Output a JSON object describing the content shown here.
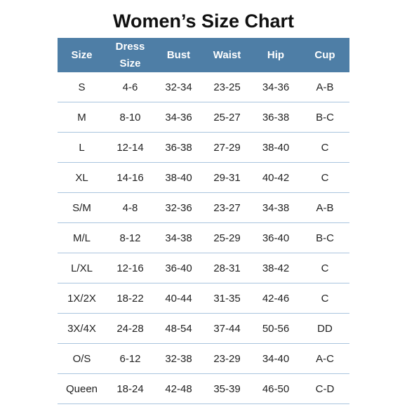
{
  "title": "Women’s Size Chart",
  "columns": [
    {
      "key": "size",
      "lines": [
        "Size"
      ]
    },
    {
      "key": "dress_size",
      "lines": [
        "Dress",
        "Size"
      ]
    },
    {
      "key": "bust",
      "lines": [
        "Bust"
      ]
    },
    {
      "key": "waist",
      "lines": [
        "Waist"
      ]
    },
    {
      "key": "hip",
      "lines": [
        "Hip"
      ]
    },
    {
      "key": "cup",
      "lines": [
        "Cup"
      ]
    }
  ],
  "rows": [
    [
      "S",
      "4-6",
      "32-34",
      "23-25",
      "34-36",
      "A-B"
    ],
    [
      "M",
      "8-10",
      "34-36",
      "25-27",
      "36-38",
      "B-C"
    ],
    [
      "L",
      "12-14",
      "36-38",
      "27-29",
      "38-40",
      "C"
    ],
    [
      "XL",
      "14-16",
      "38-40",
      "29-31",
      "40-42",
      "C"
    ],
    [
      "S/M",
      "4-8",
      "32-36",
      "23-27",
      "34-38",
      "A-B"
    ],
    [
      "M/L",
      "8-12",
      "34-38",
      "25-29",
      "36-40",
      "B-C"
    ],
    [
      "L/XL",
      "12-16",
      "36-40",
      "28-31",
      "38-42",
      "C"
    ],
    [
      "1X/2X",
      "18-22",
      "40-44",
      "31-35",
      "42-46",
      "C"
    ],
    [
      "3X/4X",
      "24-28",
      "48-54",
      "37-44",
      "50-56",
      "DD"
    ],
    [
      "O/S",
      "6-12",
      "32-38",
      "23-29",
      "34-40",
      "A-C"
    ],
    [
      "Queen",
      "18-24",
      "42-48",
      "35-39",
      "46-50",
      "C-D"
    ]
  ],
  "colors": {
    "header_bg": "#4e7ea6",
    "header_text": "#ffffff",
    "row_divider": "#a9c4de",
    "body_text": "#222222",
    "title_text": "#111111"
  }
}
